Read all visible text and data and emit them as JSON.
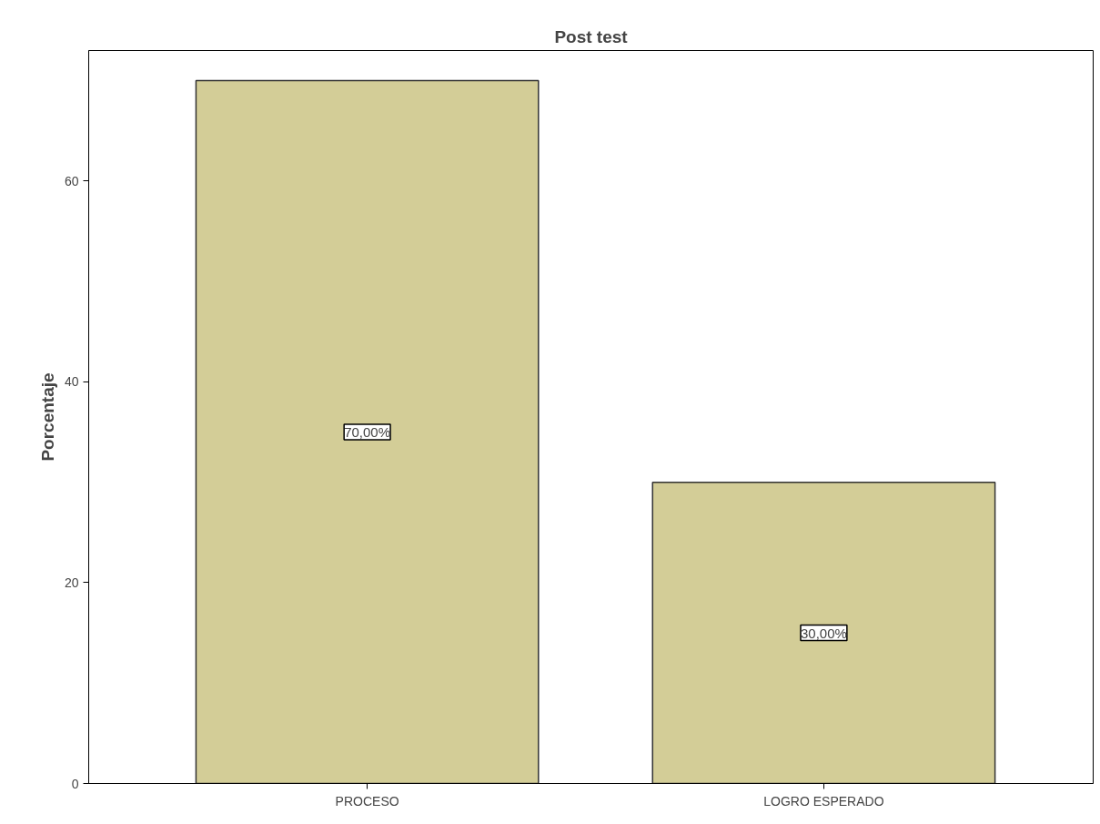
{
  "chart_data": {
    "type": "bar",
    "title": "Post test",
    "ylabel": "Porcentaje",
    "categories": [
      "PROCESO",
      "LOGRO ESPERADO"
    ],
    "values": [
      70,
      30
    ],
    "value_labels": [
      "70,00%",
      "30,00%"
    ],
    "color": "#d3cd97",
    "ylim": [
      0,
      73
    ],
    "yticks": [
      0,
      20,
      40,
      60
    ],
    "grid": false
  }
}
